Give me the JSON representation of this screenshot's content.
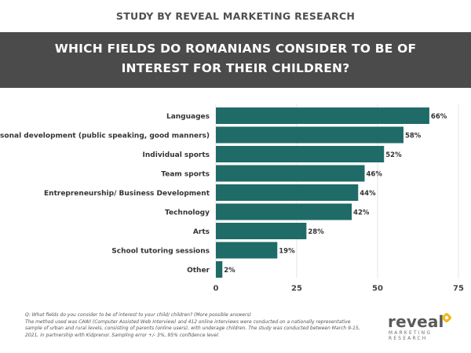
{
  "header": {
    "study_label": "STUDY BY REVEAL MARKETING RESEARCH",
    "question_line1": "WHICH FIELDS DO ROMANIANS CONSIDER TO BE OF",
    "question_line2": "INTEREST FOR THEIR CHILDREN?"
  },
  "chart_data": {
    "type": "bar",
    "orientation": "horizontal",
    "title": "",
    "xlabel": "",
    "ylabel": "",
    "categories": [
      "Languages",
      "Personal development (public speaking, good manners)",
      "Individual sports",
      "Team sports",
      "Entrepreneurship/ Business Development",
      "Technology",
      "Arts",
      "School tutoring sessions",
      "Other"
    ],
    "values": [
      66,
      58,
      52,
      46,
      44,
      42,
      28,
      19,
      2
    ],
    "value_labels": [
      "66%",
      "58%",
      "52%",
      "46%",
      "44%",
      "42%",
      "28%",
      "19%",
      "2%"
    ],
    "xlim": [
      0,
      75
    ],
    "xticks": [
      "0",
      "25",
      "50",
      "75"
    ],
    "grid": true,
    "bar_color": "#1f6b67"
  },
  "footnote": {
    "lines": [
      "Q: What fields do you consider to be of interest to your child/ children? (More possible answers)",
      "The method used was CAWI (Computer Assisted Web Interview) and 412 online interviews were conducted on a nationally representative",
      "sample of urban and rural levels, consisting of parents (online users), with underage children. The study was conducted between March 9-15,",
      "2021, in partnership with Kidprenor. Sampling error +/- 3%, 95% confidence level."
    ]
  },
  "logo": {
    "word": "reveal",
    "sub_line1": "MARKETING",
    "sub_line2": "RESEARCH",
    "accent_color": "#f2b51c"
  }
}
